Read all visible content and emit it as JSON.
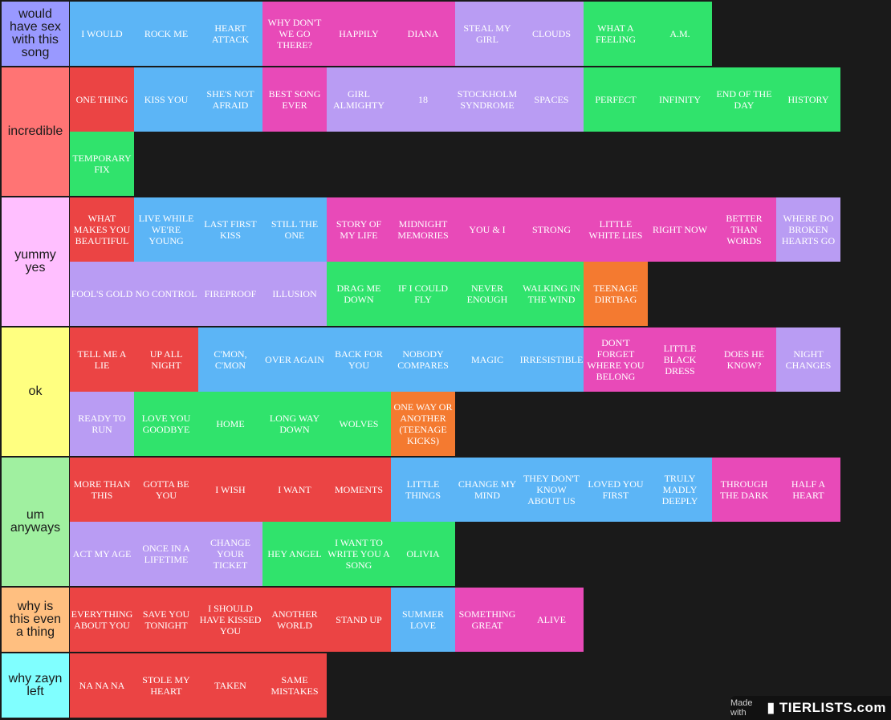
{
  "colors": {
    "background": "#1a1a1a",
    "blue": "#5cb5f6",
    "magenta": "#e84ab8",
    "purple": "#b99cf3",
    "green": "#30e36c",
    "red": "#eb4444",
    "orange": "#f47a30"
  },
  "tiers": [
    {
      "label": "would\nhave sex\nwith this\nsong",
      "label_color": "#9999ff",
      "items": [
        {
          "text": "I WOULD",
          "color": "blue"
        },
        {
          "text": "ROCK ME",
          "color": "blue"
        },
        {
          "text": "HEART ATTACK",
          "color": "blue"
        },
        {
          "text": "WHY DON'T WE GO THERE?",
          "color": "magenta"
        },
        {
          "text": "HAPPILY",
          "color": "magenta"
        },
        {
          "text": "DIANA",
          "color": "magenta"
        },
        {
          "text": "STEAL MY GIRL",
          "color": "purple"
        },
        {
          "text": "CLOUDS",
          "color": "purple"
        },
        {
          "text": "WHAT A FEELING",
          "color": "green"
        },
        {
          "text": "A.M.",
          "color": "green"
        }
      ]
    },
    {
      "label": "incredible",
      "label_color": "#ff7474",
      "items": [
        {
          "text": "ONE THING",
          "color": "red"
        },
        {
          "text": "KISS YOU",
          "color": "blue"
        },
        {
          "text": "SHE'S NOT AFRAID",
          "color": "blue"
        },
        {
          "text": "BEST SONG EVER",
          "color": "magenta"
        },
        {
          "text": "GIRL ALMIGHTY",
          "color": "purple"
        },
        {
          "text": "18",
          "color": "purple"
        },
        {
          "text": "STOCKHOLM SYNDROME",
          "color": "purple"
        },
        {
          "text": "SPACES",
          "color": "purple"
        },
        {
          "text": "PERFECT",
          "color": "green"
        },
        {
          "text": "INFINITY",
          "color": "green"
        },
        {
          "text": "END OF THE DAY",
          "color": "green"
        },
        {
          "text": "HISTORY",
          "color": "green"
        },
        {
          "text": "TEMPORARY FIX",
          "color": "green"
        }
      ]
    },
    {
      "label": "yummy\nyes",
      "label_color": "#ffbfff",
      "items": [
        {
          "text": "WHAT MAKES YOU BEAUTIFUL",
          "color": "red"
        },
        {
          "text": "LIVE WHILE WE'RE YOUNG",
          "color": "blue"
        },
        {
          "text": "LAST FIRST KISS",
          "color": "blue"
        },
        {
          "text": "STILL THE ONE",
          "color": "blue"
        },
        {
          "text": "STORY OF MY LIFE",
          "color": "magenta"
        },
        {
          "text": "MIDNIGHT MEMORIES",
          "color": "magenta"
        },
        {
          "text": "YOU & I",
          "color": "magenta"
        },
        {
          "text": "STRONG",
          "color": "magenta"
        },
        {
          "text": "LITTLE WHITE LIES",
          "color": "magenta"
        },
        {
          "text": "RIGHT NOW",
          "color": "magenta"
        },
        {
          "text": "BETTER THAN WORDS",
          "color": "magenta"
        },
        {
          "text": "WHERE DO BROKEN HEARTS GO",
          "color": "purple"
        },
        {
          "text": "FOOL'S GOLD",
          "color": "purple"
        },
        {
          "text": "NO CONTROL",
          "color": "purple"
        },
        {
          "text": "FIREPROOF",
          "color": "purple"
        },
        {
          "text": "ILLUSION",
          "color": "purple"
        },
        {
          "text": "DRAG ME DOWN",
          "color": "green"
        },
        {
          "text": "IF I COULD FLY",
          "color": "green"
        },
        {
          "text": "NEVER ENOUGH",
          "color": "green"
        },
        {
          "text": "WALKING IN THE WIND",
          "color": "green"
        },
        {
          "text": "TEENAGE DIRTBAG",
          "color": "orange"
        }
      ]
    },
    {
      "label": "ok",
      "label_color": "#ffff80",
      "items": [
        {
          "text": "TELL ME A LIE",
          "color": "red"
        },
        {
          "text": "UP ALL NIGHT",
          "color": "red"
        },
        {
          "text": "C'MON, C'MON",
          "color": "blue"
        },
        {
          "text": "OVER AGAIN",
          "color": "blue"
        },
        {
          "text": "BACK FOR YOU",
          "color": "blue"
        },
        {
          "text": "NOBODY COMPARES",
          "color": "blue"
        },
        {
          "text": "MAGIC",
          "color": "blue"
        },
        {
          "text": "IRRESISTIBLE",
          "color": "blue"
        },
        {
          "text": "DON'T FORGET WHERE YOU BELONG",
          "color": "magenta"
        },
        {
          "text": "LITTLE BLACK DRESS",
          "color": "magenta"
        },
        {
          "text": "DOES HE KNOW?",
          "color": "magenta"
        },
        {
          "text": "NIGHT CHANGES",
          "color": "purple"
        },
        {
          "text": "READY TO RUN",
          "color": "purple"
        },
        {
          "text": "LOVE YOU GOODBYE",
          "color": "green"
        },
        {
          "text": "HOME",
          "color": "green"
        },
        {
          "text": "LONG WAY DOWN",
          "color": "green"
        },
        {
          "text": "WOLVES",
          "color": "green"
        },
        {
          "text": "ONE WAY OR ANOTHER (TEENAGE KICKS)",
          "color": "orange"
        }
      ]
    },
    {
      "label": "um\nanyways",
      "label_color": "#a0f0a0",
      "items": [
        {
          "text": "MORE THAN THIS",
          "color": "red"
        },
        {
          "text": "GOTTA BE YOU",
          "color": "red"
        },
        {
          "text": "I WISH",
          "color": "red"
        },
        {
          "text": "I WANT",
          "color": "red"
        },
        {
          "text": "MOMENTS",
          "color": "red"
        },
        {
          "text": "LITTLE THINGS",
          "color": "blue"
        },
        {
          "text": "CHANGE MY MIND",
          "color": "blue"
        },
        {
          "text": "THEY DON'T KNOW ABOUT US",
          "color": "blue"
        },
        {
          "text": "LOVED YOU FIRST",
          "color": "blue"
        },
        {
          "text": "TRULY MADLY DEEPLY",
          "color": "blue"
        },
        {
          "text": "THROUGH THE DARK",
          "color": "magenta"
        },
        {
          "text": "HALF A HEART",
          "color": "magenta"
        },
        {
          "text": "ACT MY AGE",
          "color": "purple"
        },
        {
          "text": "ONCE IN A LIFETIME",
          "color": "purple"
        },
        {
          "text": "CHANGE YOUR TICKET",
          "color": "purple"
        },
        {
          "text": "HEY ANGEL",
          "color": "green"
        },
        {
          "text": "I WANT TO WRITE YOU A SONG",
          "color": "green"
        },
        {
          "text": "OLIVIA",
          "color": "green"
        }
      ]
    },
    {
      "label": "why is\nthis even\na thing",
      "label_color": "#ffbf80",
      "items": [
        {
          "text": "EVERYTHING ABOUT YOU",
          "color": "red"
        },
        {
          "text": "SAVE YOU TONIGHT",
          "color": "red"
        },
        {
          "text": "I SHOULD HAVE KISSED YOU",
          "color": "red"
        },
        {
          "text": "ANOTHER WORLD",
          "color": "red"
        },
        {
          "text": "STAND UP",
          "color": "red"
        },
        {
          "text": "SUMMER LOVE",
          "color": "blue"
        },
        {
          "text": "SOMETHING GREAT",
          "color": "magenta"
        },
        {
          "text": "ALIVE",
          "color": "magenta"
        }
      ]
    },
    {
      "label": "why zayn\nleft",
      "label_color": "#80ffff",
      "items": [
        {
          "text": "NA NA NA",
          "color": "red"
        },
        {
          "text": "STOLE MY HEART",
          "color": "red"
        },
        {
          "text": "TAKEN",
          "color": "red"
        },
        {
          "text": "SAME MISTAKES",
          "color": "red"
        }
      ]
    }
  ],
  "watermark": {
    "made_with": "Made with",
    "brand": "TIERLISTS.com"
  }
}
